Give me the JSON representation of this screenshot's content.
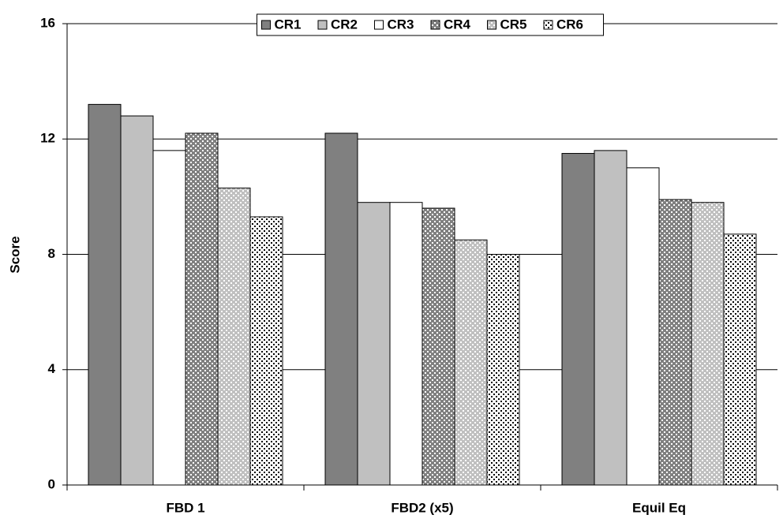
{
  "chart_data": {
    "type": "bar",
    "y_label": "Score",
    "categories": [
      "FBD 1",
      "FBD2 (x5)",
      "Equil Eq"
    ],
    "series": [
      {
        "name": "CR1",
        "color": "#808080",
        "values": [
          13.2,
          12.2,
          11.5
        ]
      },
      {
        "name": "CR2",
        "color": "#c0c0c0",
        "values": [
          12.8,
          9.8,
          11.6
        ]
      },
      {
        "name": "CR3",
        "color": "#ffffff",
        "values": [
          11.6,
          9.8,
          11.0
        ]
      },
      {
        "name": "CR4",
        "color": "#808080",
        "dot_color": "#ffffff",
        "values": [
          12.2,
          9.6,
          9.9
        ]
      },
      {
        "name": "CR5",
        "color": "#c0c0c0",
        "dot_color": "#ffffff",
        "values": [
          10.3,
          8.5,
          9.8
        ]
      },
      {
        "name": "CR6",
        "color": "#ffffff",
        "dot_color": "#000000",
        "values": [
          9.3,
          8.0,
          8.7
        ]
      }
    ],
    "ylim": [
      0,
      16
    ],
    "yticks": [
      0,
      4,
      8,
      12,
      16
    ],
    "grid": true,
    "legend": "top"
  }
}
